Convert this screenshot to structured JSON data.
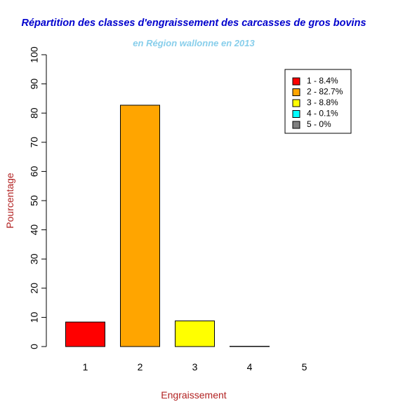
{
  "chart_data": {
    "type": "bar",
    "title": "Répartition des classes d'engraissement des carcasses de gros bovins",
    "subtitle": "en Région wallonne en 2013",
    "xlabel": "Engraissement",
    "ylabel": "Pourcentage",
    "categories": [
      "1",
      "2",
      "3",
      "4",
      "5"
    ],
    "values": [
      8.4,
      82.7,
      8.8,
      0.1,
      0
    ],
    "colors": [
      "#ff0000",
      "#ffa500",
      "#ffff00",
      "#00ffff",
      "#808080"
    ],
    "y_ticks": [
      "0",
      "10",
      "20",
      "30",
      "40",
      "50",
      "60",
      "70",
      "80",
      "90",
      "100"
    ],
    "ylim": [
      0,
      100
    ],
    "grid": false,
    "legend": {
      "position": "top-right",
      "entries": [
        "1 - 8.4%",
        "2 - 82.7%",
        "3 - 8.8%",
        "4 - 0.1%",
        "5 - 0%"
      ]
    },
    "title_color": "#0000cd",
    "subtitle_color": "#87ceeb",
    "axis_label_color": "#b22222"
  }
}
